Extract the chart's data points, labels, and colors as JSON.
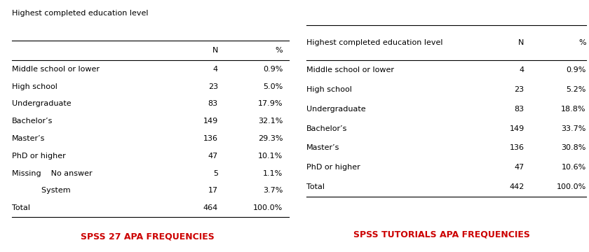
{
  "left_title": "Highest completed education level",
  "left_rows": [
    [
      "Middle school or lower",
      "4",
      "0.9%"
    ],
    [
      "High school",
      "23",
      "5.0%"
    ],
    [
      "Undergraduate",
      "83",
      "17.9%"
    ],
    [
      "Bachelor’s",
      "149",
      "32.1%"
    ],
    [
      "Master’s",
      "136",
      "29.3%"
    ],
    [
      "PhD or higher",
      "47",
      "10.1%"
    ],
    [
      "Missing    No answer",
      "5",
      "1.1%"
    ],
    [
      "            System",
      "17",
      "3.7%"
    ],
    [
      "Total",
      "464",
      "100.0%"
    ]
  ],
  "left_label": "SPSS 27 APA FREQUENCIES",
  "right_title": "Highest completed education level",
  "right_rows": [
    [
      "Middle school or lower",
      "4",
      "0.9%"
    ],
    [
      "High school",
      "23",
      "5.2%"
    ],
    [
      "Undergraduate",
      "83",
      "18.8%"
    ],
    [
      "Bachelor’s",
      "149",
      "33.7%"
    ],
    [
      "Master’s",
      "136",
      "30.8%"
    ],
    [
      "PhD or higher",
      "47",
      "10.6%"
    ],
    [
      "Total",
      "442",
      "100.0%"
    ]
  ],
  "right_label": "SPSS TUTORIALS APA FREQUENCIES",
  "label_color": "#cc0000",
  "text_color": "#000000",
  "bg_color": "#ffffff",
  "font_size": 8.0,
  "label_font_size": 9.0
}
